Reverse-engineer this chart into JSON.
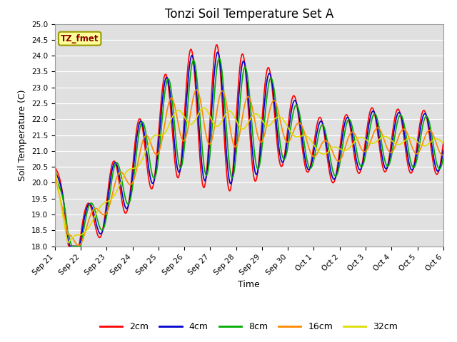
{
  "title": "Tonzi Soil Temperature Set A",
  "xlabel": "Time",
  "ylabel": "Soil Temperature (C)",
  "ylim": [
    18.0,
    25.0
  ],
  "yticks": [
    18.0,
    18.5,
    19.0,
    19.5,
    20.0,
    20.5,
    21.0,
    21.5,
    22.0,
    22.5,
    23.0,
    23.5,
    24.0,
    24.5,
    25.0
  ],
  "annotation": "TZ_fmet",
  "bg_color": "#e0e0e0",
  "line_colors": {
    "2cm": "#ff0000",
    "4cm": "#0000cc",
    "8cm": "#00aa00",
    "16cm": "#ff8800",
    "32cm": "#dddd00"
  },
  "xtick_labels": [
    "Sep 21",
    "Sep 22",
    "Sep 23",
    "Sep 24",
    "Sep 25",
    "Sep 26",
    "Sep 27",
    "Sep 28",
    "Sep 29",
    "Sep 30",
    "Oct 1",
    "Oct 2",
    "Oct 3",
    "Oct 4",
    "Oct 5",
    "Oct 6"
  ],
  "n_points": 480,
  "title_fontsize": 12,
  "axis_fontsize": 9,
  "tick_fontsize": 7.5,
  "legend_fontsize": 9,
  "linewidth": 1.2
}
